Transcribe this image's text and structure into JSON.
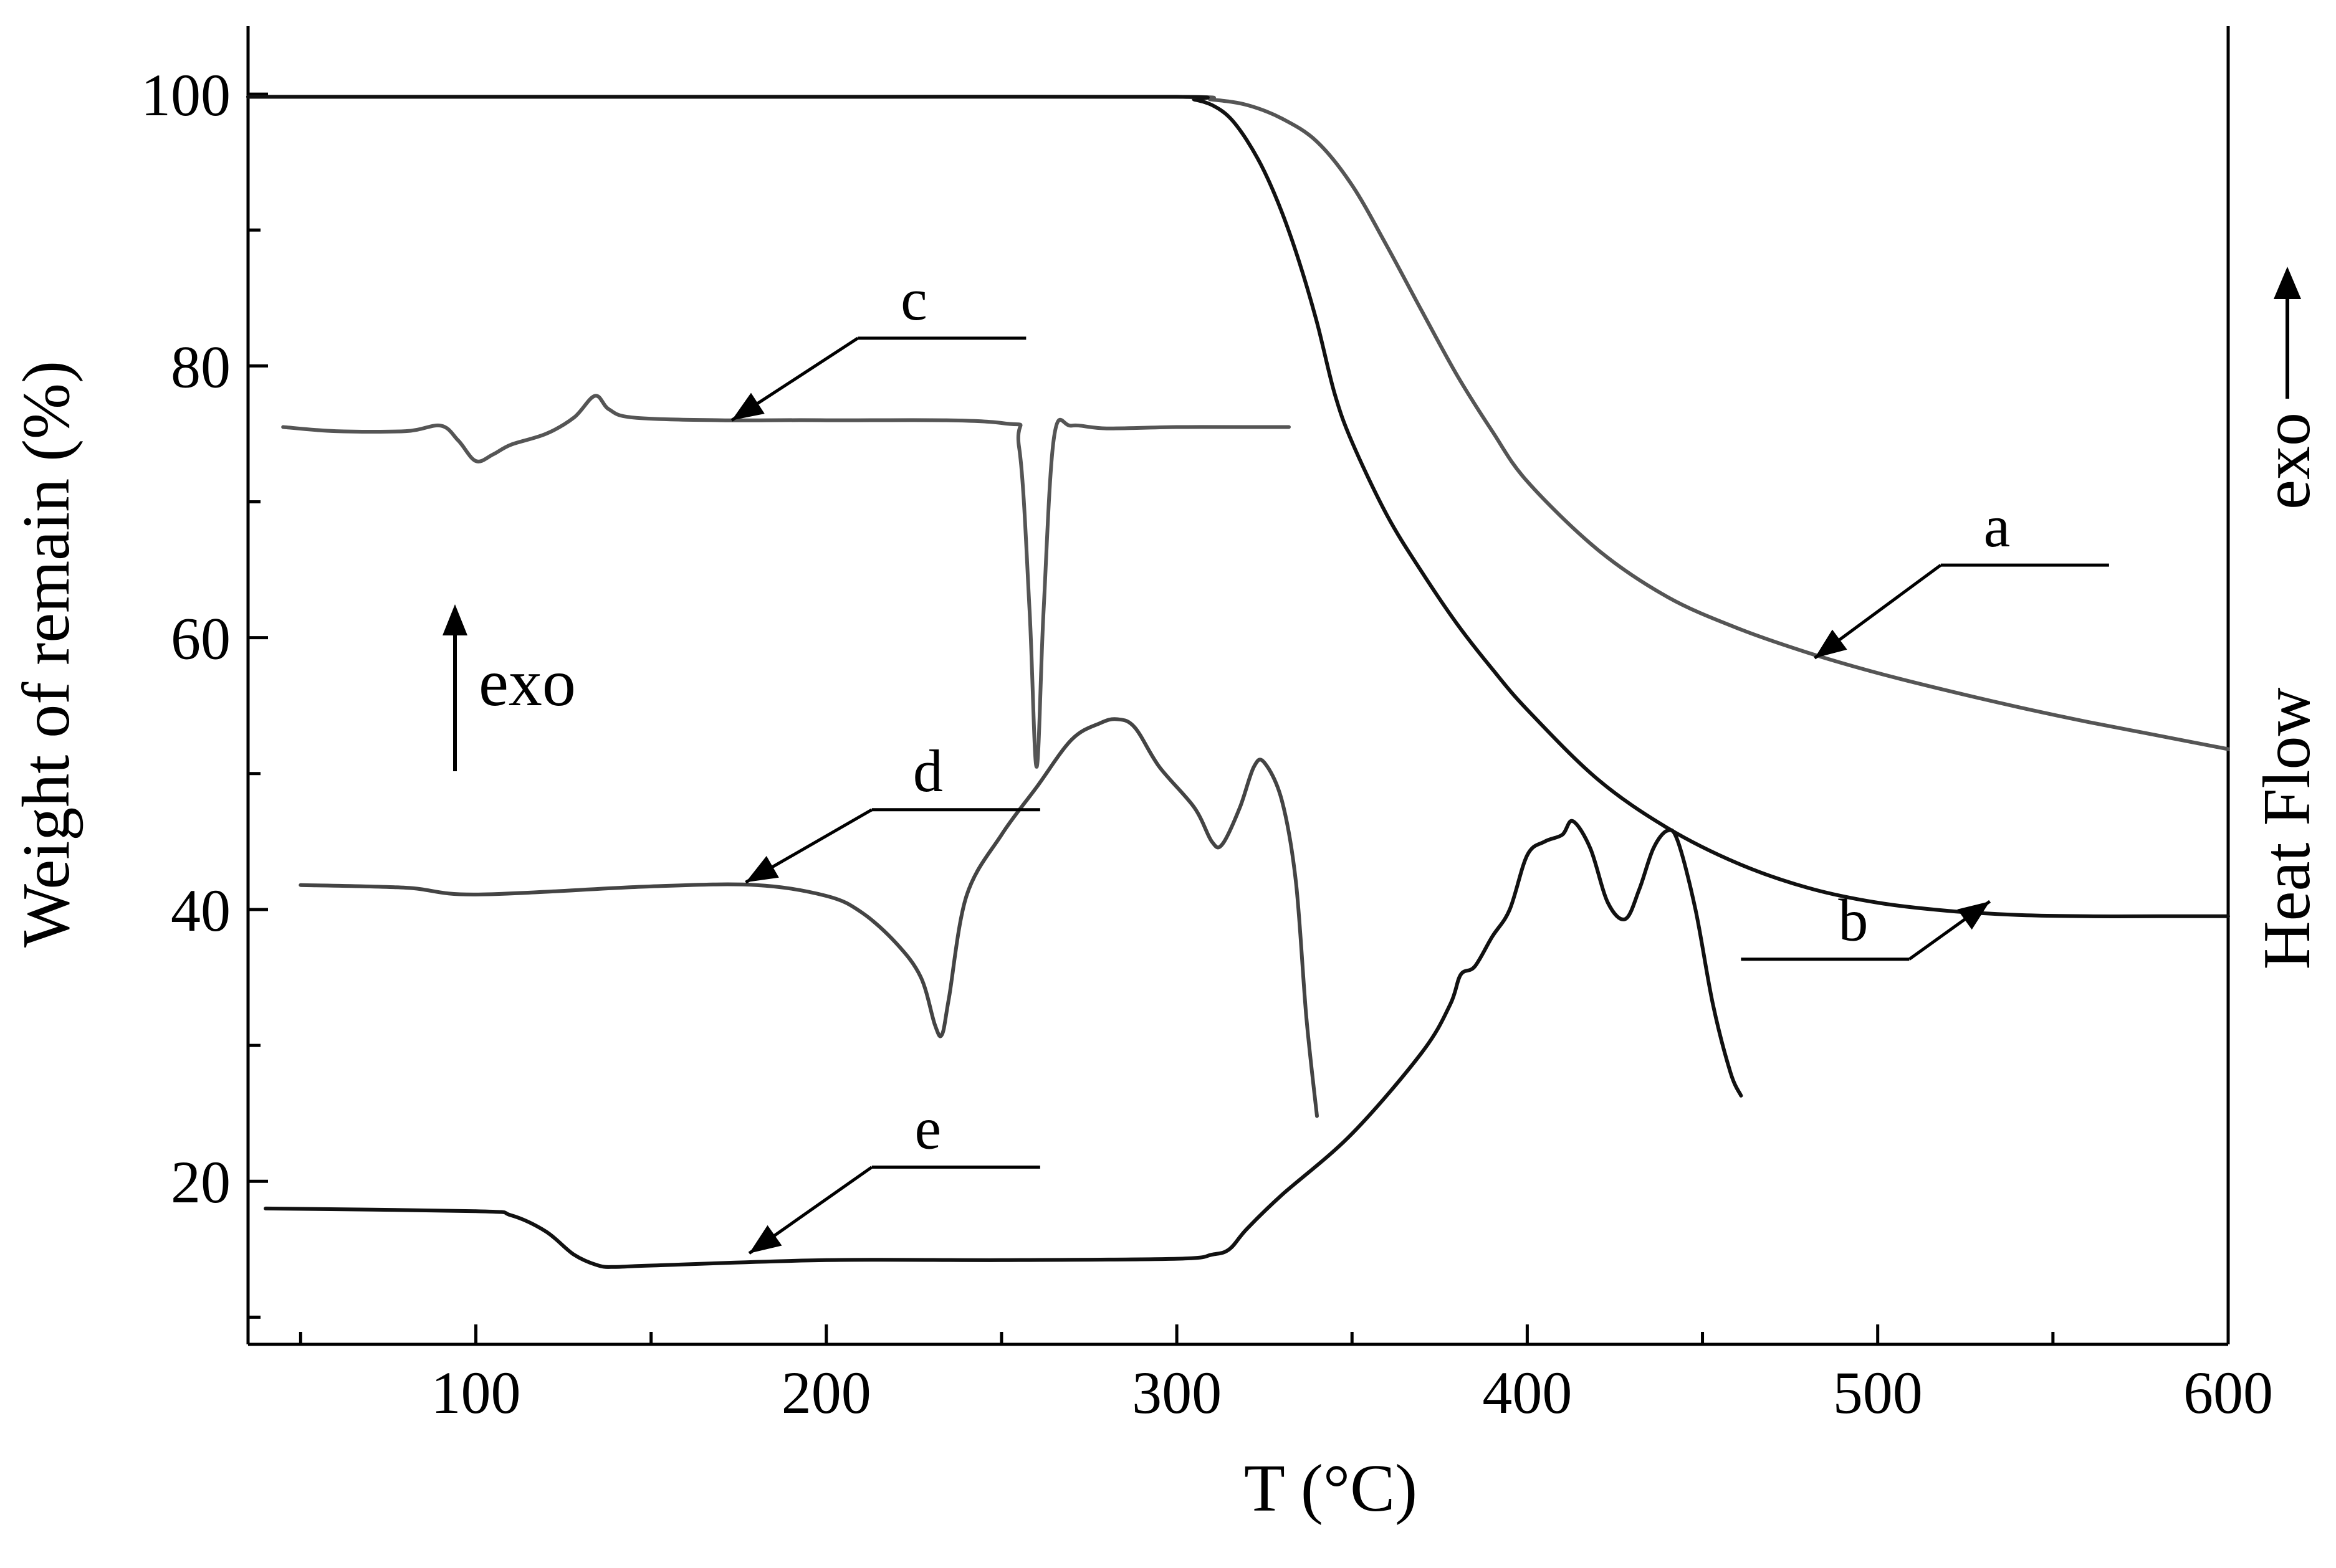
{
  "chart_data": {
    "type": "line",
    "title": "",
    "xlabel": "T (°C)",
    "ylabel": "Weight of remain (%)",
    "y2label": "Heat Flow",
    "y2_arrow_label": "exo",
    "xlim": [
      35,
      600
    ],
    "ylim": [
      8,
      105
    ],
    "xticks": [
      100,
      200,
      300,
      400,
      500,
      600
    ],
    "yticks": [
      20,
      40,
      60,
      80,
      100
    ],
    "grid": false,
    "legend": "none",
    "exo_indicator": "exo",
    "series": [
      {
        "name": "a",
        "color": "#555555",
        "x": [
          35,
          100,
          200,
          300,
          310,
          320,
          330,
          340,
          350,
          360,
          370,
          380,
          390,
          400,
          420,
          440,
          460,
          480,
          500,
          520,
          540,
          560,
          580,
          600
        ],
        "y": [
          99.8,
          99.8,
          99.8,
          99.8,
          99.6,
          99.2,
          98.2,
          96.5,
          93.3,
          88.8,
          84.0,
          79.3,
          75.2,
          71.5,
          66.5,
          63.0,
          60.7,
          58.9,
          57.4,
          56.1,
          54.9,
          53.8,
          52.8,
          51.8
        ]
      },
      {
        "name": "b",
        "color": "#111111",
        "x": [
          35,
          100,
          200,
          300,
          305,
          310,
          315,
          320,
          325,
          330,
          335,
          340,
          345,
          350,
          360,
          370,
          380,
          390,
          400,
          420,
          440,
          460,
          480,
          500,
          520,
          540,
          560,
          580,
          600
        ],
        "y": [
          99.8,
          99.8,
          99.8,
          99.8,
          99.6,
          99.2,
          98.3,
          96.6,
          94.3,
          91.3,
          87.6,
          83.2,
          78.0,
          74.4,
          69.0,
          64.8,
          61.0,
          57.7,
          54.7,
          49.6,
          46.0,
          43.4,
          41.6,
          40.5,
          39.9,
          39.6,
          39.5,
          39.5,
          39.5
        ]
      },
      {
        "name": "c",
        "color": "#555555",
        "x": [
          45,
          60,
          80,
          90,
          95,
          100,
          105,
          110,
          120,
          128,
          134,
          138,
          145,
          170,
          200,
          250,
          255,
          258,
          260,
          262,
          265,
          270,
          280,
          300,
          320,
          332
        ],
        "y": [
          75.5,
          75.2,
          75.2,
          75.6,
          74.5,
          73.0,
          73.5,
          74.2,
          75.0,
          76.2,
          77.8,
          76.8,
          76.2,
          76.0,
          76.0,
          75.8,
          74.0,
          62.0,
          50.5,
          62.0,
          74.8,
          75.6,
          75.4,
          75.5,
          75.5,
          75.5
        ]
      },
      {
        "name": "d",
        "color": "#444444",
        "x": [
          50,
          80,
          100,
          150,
          180,
          200,
          210,
          220,
          227,
          231,
          233,
          235,
          240,
          250,
          260,
          270,
          278,
          283,
          288,
          295,
          305,
          310,
          313,
          318,
          322,
          325,
          330,
          334,
          337,
          340
        ],
        "y": [
          41.8,
          41.6,
          41.1,
          41.7,
          41.8,
          41.0,
          39.8,
          37.5,
          35.0,
          31.5,
          30.8,
          33.5,
          41.0,
          45.5,
          49.0,
          52.5,
          53.7,
          54.0,
          53.4,
          50.5,
          47.5,
          45.0,
          44.8,
          47.5,
          50.5,
          50.8,
          48.0,
          42.0,
          32.0,
          24.8
        ]
      },
      {
        "name": "e",
        "color": "#111111",
        "x": [
          40,
          100,
          110,
          120,
          128,
          135,
          140,
          150,
          200,
          250,
          300,
          310,
          315,
          320,
          330,
          350,
          370,
          378,
          381,
          385,
          390,
          395,
          400,
          405,
          410,
          413,
          418,
          423,
          428,
          432,
          436,
          440,
          443,
          448,
          453,
          458,
          461
        ],
        "y": [
          18.0,
          17.8,
          17.5,
          16.3,
          14.6,
          13.8,
          13.7,
          13.8,
          14.2,
          14.2,
          14.3,
          14.6,
          15.0,
          16.5,
          19.0,
          23.5,
          29.5,
          33.0,
          35.2,
          35.8,
          38.0,
          40.0,
          44.0,
          45.0,
          45.5,
          46.5,
          44.5,
          40.5,
          39.3,
          41.5,
          44.5,
          45.8,
          45.0,
          40.0,
          33.0,
          28.0,
          26.3
        ]
      }
    ],
    "annotations": [
      {
        "label": "a",
        "x": 534,
        "y": 65.8,
        "arrow_to": [
          482,
          58.5
        ]
      },
      {
        "label": "b",
        "x": 493,
        "y": 36.8,
        "arrow_to": [
          532,
          40.6
        ]
      },
      {
        "label": "c",
        "x": 225,
        "y": 82.5,
        "arrow_to": [
          173,
          76.0
        ]
      },
      {
        "label": "d",
        "x": 229,
        "y": 47.8,
        "arrow_to": [
          177,
          42.0
        ]
      },
      {
        "label": "e",
        "x": 229,
        "y": 21.5,
        "arrow_to": [
          178,
          14.7
        ]
      }
    ]
  }
}
